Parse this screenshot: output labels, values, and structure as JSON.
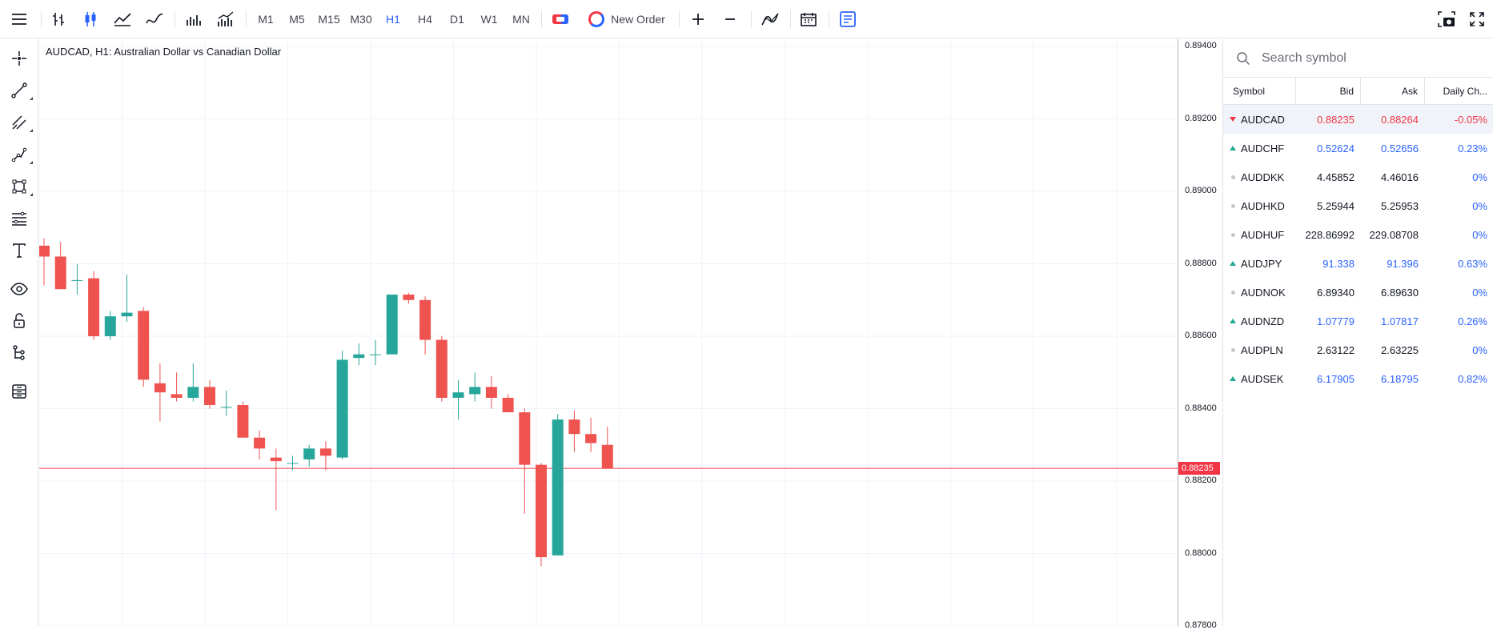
{
  "toolbar": {
    "timeframes": [
      "M1",
      "M5",
      "M15",
      "M30",
      "H1",
      "H4",
      "D1",
      "W1",
      "MN"
    ],
    "active_timeframe": "H1",
    "new_order_label": "New Order",
    "icons": [
      "menu-icon",
      "bar-chart-icon",
      "candlestick-icon",
      "area-chart-icon",
      "line-chart-icon",
      "volume-icon",
      "indicators-bars-icon",
      "one-click-trading-icon",
      "zoom-in-icon",
      "zoom-out-icon",
      "indicators-icon",
      "calendar-icon",
      "trade-panel-icon",
      "screenshot-icon",
      "fullscreen-icon"
    ]
  },
  "left_toolbar": {
    "icons": [
      "crosshair-icon",
      "trend-line-icon",
      "parallel-channel-icon",
      "polyline-icon",
      "shapes-icon",
      "fibonacci-icon",
      "text-icon",
      "visibility-icon",
      "lock-icon",
      "object-tree-icon",
      "layers-icon"
    ]
  },
  "chart": {
    "title": "AUDCAD, H1: Australian Dollar vs Canadian Dollar",
    "up_color": "#26a69a",
    "down_color": "#ef5350",
    "current_price": "0.88235",
    "price_labels": [
      "0.89400",
      "0.89200",
      "0.89000",
      "0.88800",
      "0.88600",
      "0.88400",
      "0.88200",
      "0.88000",
      "0.87800"
    ]
  },
  "chart_data": {
    "type": "candlestick",
    "title": "AUDCAD, H1: Australian Dollar vs Canadian Dollar",
    "ylim": [
      0.878,
      0.8942
    ],
    "current_price": 0.88235,
    "candles": [
      {
        "o": 0.8885,
        "h": 0.8887,
        "l": 0.8874,
        "c": 0.8882
      },
      {
        "o": 0.8882,
        "h": 0.8886,
        "l": 0.8873,
        "c": 0.8873
      },
      {
        "o": 0.88755,
        "h": 0.888,
        "l": 0.88715,
        "c": 0.88755
      },
      {
        "o": 0.8876,
        "h": 0.8878,
        "l": 0.8859,
        "c": 0.886
      },
      {
        "o": 0.886,
        "h": 0.8867,
        "l": 0.8859,
        "c": 0.88655
      },
      {
        "o": 0.88655,
        "h": 0.8877,
        "l": 0.8864,
        "c": 0.88665
      },
      {
        "o": 0.8867,
        "h": 0.8868,
        "l": 0.8846,
        "c": 0.8848
      },
      {
        "o": 0.8847,
        "h": 0.88525,
        "l": 0.88365,
        "c": 0.88445
      },
      {
        "o": 0.8844,
        "h": 0.885,
        "l": 0.8842,
        "c": 0.8843
      },
      {
        "o": 0.8843,
        "h": 0.88525,
        "l": 0.8842,
        "c": 0.8846
      },
      {
        "o": 0.8846,
        "h": 0.8848,
        "l": 0.884,
        "c": 0.8841
      },
      {
        "o": 0.88405,
        "h": 0.8845,
        "l": 0.8838,
        "c": 0.88405
      },
      {
        "o": 0.8841,
        "h": 0.8842,
        "l": 0.8832,
        "c": 0.8832
      },
      {
        "o": 0.8832,
        "h": 0.8834,
        "l": 0.8826,
        "c": 0.8829
      },
      {
        "o": 0.88265,
        "h": 0.8829,
        "l": 0.8812,
        "c": 0.88255
      },
      {
        "o": 0.8825,
        "h": 0.8827,
        "l": 0.8823,
        "c": 0.8825
      },
      {
        "o": 0.8826,
        "h": 0.883,
        "l": 0.8824,
        "c": 0.8829
      },
      {
        "o": 0.8829,
        "h": 0.8831,
        "l": 0.8823,
        "c": 0.8827
      },
      {
        "o": 0.88265,
        "h": 0.8856,
        "l": 0.8826,
        "c": 0.88535
      },
      {
        "o": 0.8854,
        "h": 0.8858,
        "l": 0.8852,
        "c": 0.8855
      },
      {
        "o": 0.8855,
        "h": 0.8859,
        "l": 0.8852,
        "c": 0.8855
      },
      {
        "o": 0.8855,
        "h": 0.88715,
        "l": 0.8855,
        "c": 0.88715
      },
      {
        "o": 0.88715,
        "h": 0.8872,
        "l": 0.8869,
        "c": 0.887
      },
      {
        "o": 0.887,
        "h": 0.8871,
        "l": 0.8855,
        "c": 0.8859
      },
      {
        "o": 0.8859,
        "h": 0.886,
        "l": 0.8842,
        "c": 0.8843
      },
      {
        "o": 0.8843,
        "h": 0.8848,
        "l": 0.8837,
        "c": 0.88445
      },
      {
        "o": 0.8844,
        "h": 0.885,
        "l": 0.8842,
        "c": 0.8846
      },
      {
        "o": 0.8846,
        "h": 0.8849,
        "l": 0.884,
        "c": 0.8843
      },
      {
        "o": 0.8843,
        "h": 0.8844,
        "l": 0.8839,
        "c": 0.8839
      },
      {
        "o": 0.8839,
        "h": 0.884,
        "l": 0.8811,
        "c": 0.88245
      },
      {
        "o": 0.88245,
        "h": 0.8825,
        "l": 0.87965,
        "c": 0.8799
      },
      {
        "o": 0.87995,
        "h": 0.88385,
        "l": 0.87995,
        "c": 0.8837
      },
      {
        "o": 0.8837,
        "h": 0.88395,
        "l": 0.8828,
        "c": 0.8833
      },
      {
        "o": 0.8833,
        "h": 0.88375,
        "l": 0.8828,
        "c": 0.88305
      },
      {
        "o": 0.883,
        "h": 0.8835,
        "l": 0.88235,
        "c": 0.88235
      }
    ]
  },
  "watchlist": {
    "search_placeholder": "Search symbol",
    "columns": [
      "Symbol",
      "Bid",
      "Ask",
      "Daily Ch..."
    ],
    "rows": [
      {
        "symbol": "AUDCAD",
        "bid": "0.88235",
        "ask": "0.88264",
        "change": "-0.05%",
        "dir": "down"
      },
      {
        "symbol": "AUDCHF",
        "bid": "0.52624",
        "ask": "0.52656",
        "change": "0.23%",
        "dir": "up"
      },
      {
        "symbol": "AUDDKK",
        "bid": "4.45852",
        "ask": "4.46016",
        "change": "0%",
        "dir": "flat"
      },
      {
        "symbol": "AUDHKD",
        "bid": "5.25944",
        "ask": "5.25953",
        "change": "0%",
        "dir": "flat"
      },
      {
        "symbol": "AUDHUF",
        "bid": "228.86992",
        "ask": "229.08708",
        "change": "0%",
        "dir": "flat"
      },
      {
        "symbol": "AUDJPY",
        "bid": "91.338",
        "ask": "91.396",
        "change": "0.63%",
        "dir": "up"
      },
      {
        "symbol": "AUDNOK",
        "bid": "6.89340",
        "ask": "6.89630",
        "change": "0%",
        "dir": "flat"
      },
      {
        "symbol": "AUDNZD",
        "bid": "1.07779",
        "ask": "1.07817",
        "change": "0.26%",
        "dir": "up"
      },
      {
        "symbol": "AUDPLN",
        "bid": "2.63122",
        "ask": "2.63225",
        "change": "0%",
        "dir": "flat"
      },
      {
        "symbol": "AUDSEK",
        "bid": "6.17905",
        "ask": "6.18795",
        "change": "0.82%",
        "dir": "up"
      }
    ]
  }
}
